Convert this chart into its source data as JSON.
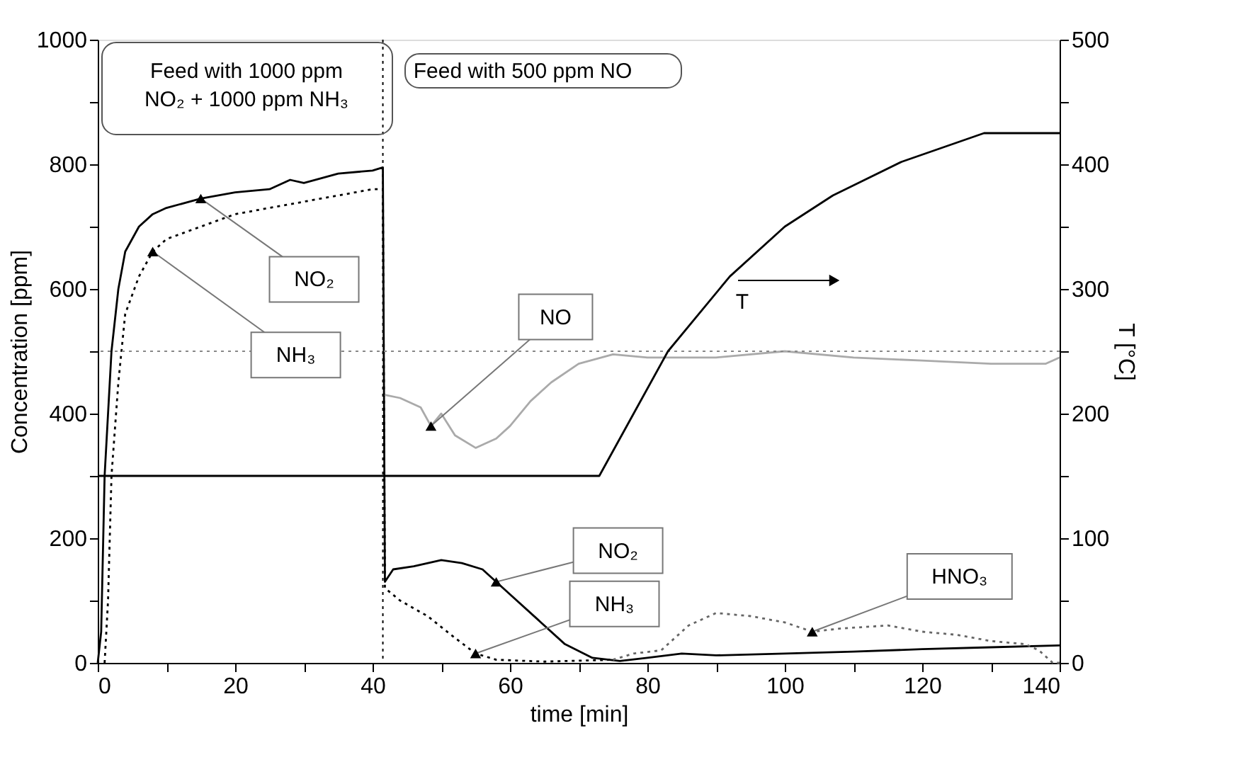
{
  "chart_data": {
    "type": "line",
    "xlabel": "time [min]",
    "ylabel": "Concentration [ppm]",
    "y2label": "T [°C]",
    "xlim": [
      0,
      140
    ],
    "xticks": [
      0,
      {
        "value": 10,
        "label": null
      },
      20,
      {
        "value": 30,
        "label": null
      },
      40,
      {
        "value": 50,
        "label": null
      },
      60,
      {
        "value": 70,
        "label": null
      },
      80,
      {
        "value": 90,
        "label": null
      },
      100,
      {
        "value": 110,
        "label": null
      },
      120,
      {
        "value": 130,
        "label": null
      },
      140
    ],
    "ylim": [
      0,
      1000
    ],
    "yticks": [
      0,
      {
        "value": 100,
        "label": null
      },
      200,
      {
        "value": 300,
        "label": null
      },
      400,
      {
        "value": 500,
        "label": null
      },
      600,
      {
        "value": 700,
        "label": null
      },
      800,
      {
        "value": 900,
        "label": null
      },
      1000
    ],
    "y2lim": [
      0,
      500
    ],
    "y2ticks": [
      0,
      {
        "value": 50,
        "label": null
      },
      100,
      {
        "value": 150,
        "label": null
      },
      200,
      {
        "value": 250,
        "label": null
      },
      300,
      {
        "value": 350,
        "label": null
      },
      400,
      {
        "value": 450,
        "label": null
      },
      500
    ],
    "series": [
      {
        "color": "#000000",
        "line_style": "solid",
        "x": [
          0,
          0.5,
          1,
          2,
          3,
          4,
          6,
          8,
          10,
          15,
          20,
          25,
          28,
          30,
          35,
          40,
          41.5,
          41.8,
          43,
          46,
          50,
          53,
          56,
          60,
          64,
          68,
          72,
          76,
          80,
          85,
          90,
          100,
          110,
          120,
          130,
          140
        ],
        "values": [
          0,
          50,
          300,
          500,
          600,
          660,
          700,
          720,
          730,
          745,
          755,
          760,
          775,
          770,
          785,
          790,
          795,
          130,
          150,
          155,
          165,
          160,
          150,
          110,
          70,
          30,
          8,
          3,
          8,
          15,
          12,
          15,
          18,
          22,
          25,
          28
        ]
      },
      {
        "color": "#000000",
        "line_style": "dotted",
        "x": [
          1,
          1.5,
          2,
          3,
          4,
          6,
          8,
          10,
          15,
          20,
          25,
          30,
          35,
          40,
          41.5,
          41.8,
          44,
          48,
          52,
          55,
          58,
          65,
          75
        ],
        "values": [
          0,
          100,
          300,
          450,
          560,
          620,
          660,
          680,
          700,
          720,
          730,
          740,
          750,
          760,
          760,
          120,
          100,
          75,
          40,
          15,
          5,
          2,
          5
        ]
      },
      {
        "color": "#666666",
        "line_style": "dotted",
        "x": [
          75,
          78,
          82,
          86,
          90,
          95,
          100,
          104,
          108,
          115,
          120,
          125,
          130,
          135,
          137,
          139,
          140
        ],
        "values": [
          5,
          15,
          20,
          60,
          80,
          75,
          65,
          50,
          55,
          60,
          50,
          45,
          35,
          30,
          20,
          0,
          0
        ]
      },
      {
        "color": "#aaaaaa",
        "line_style": "solid",
        "x": [
          41.8,
          44,
          47,
          48.5,
          50,
          52,
          55,
          58,
          60,
          63,
          66,
          70,
          75,
          80,
          90,
          100,
          110,
          120,
          130,
          138,
          140
        ],
        "values": [
          430,
          425,
          410,
          380,
          400,
          365,
          345,
          360,
          380,
          420,
          450,
          480,
          495,
          490,
          490,
          500,
          490,
          485,
          480,
          480,
          490
        ]
      },
      {
        "color": "#000000",
        "line_style": "solid",
        "axis": "y2",
        "x": [
          0,
          73,
          78,
          83,
          92,
          100,
          107,
          117,
          129,
          140
        ],
        "values": [
          150,
          150,
          200,
          250,
          310,
          350,
          375,
          402,
          425,
          425
        ]
      }
    ],
    "ref_lines": [
      {
        "axis": "x",
        "value": 41.5,
        "line_style": "dotted",
        "color": "#000000"
      },
      {
        "axis": "y",
        "value": 500,
        "line_style": "dotted",
        "color": "#888888"
      }
    ],
    "annotations": [
      "Feed with 1000 ppm\nNO₂ + 1000 ppm NH₃",
      "Feed with 500 ppm NO",
      {
        "text": "NO₂",
        "x": 15,
        "y": 745
      },
      {
        "text": "NH₃",
        "x": 8,
        "y": 660
      },
      {
        "text": "NO",
        "x": 48.5,
        "y": 380
      },
      {
        "text": "NO₂",
        "x": 58,
        "y": 130
      },
      {
        "text": "NH₃",
        "x": 55,
        "y": 15
      },
      {
        "text": "HNO₃",
        "x": 104,
        "y": 50
      },
      "T"
    ]
  }
}
